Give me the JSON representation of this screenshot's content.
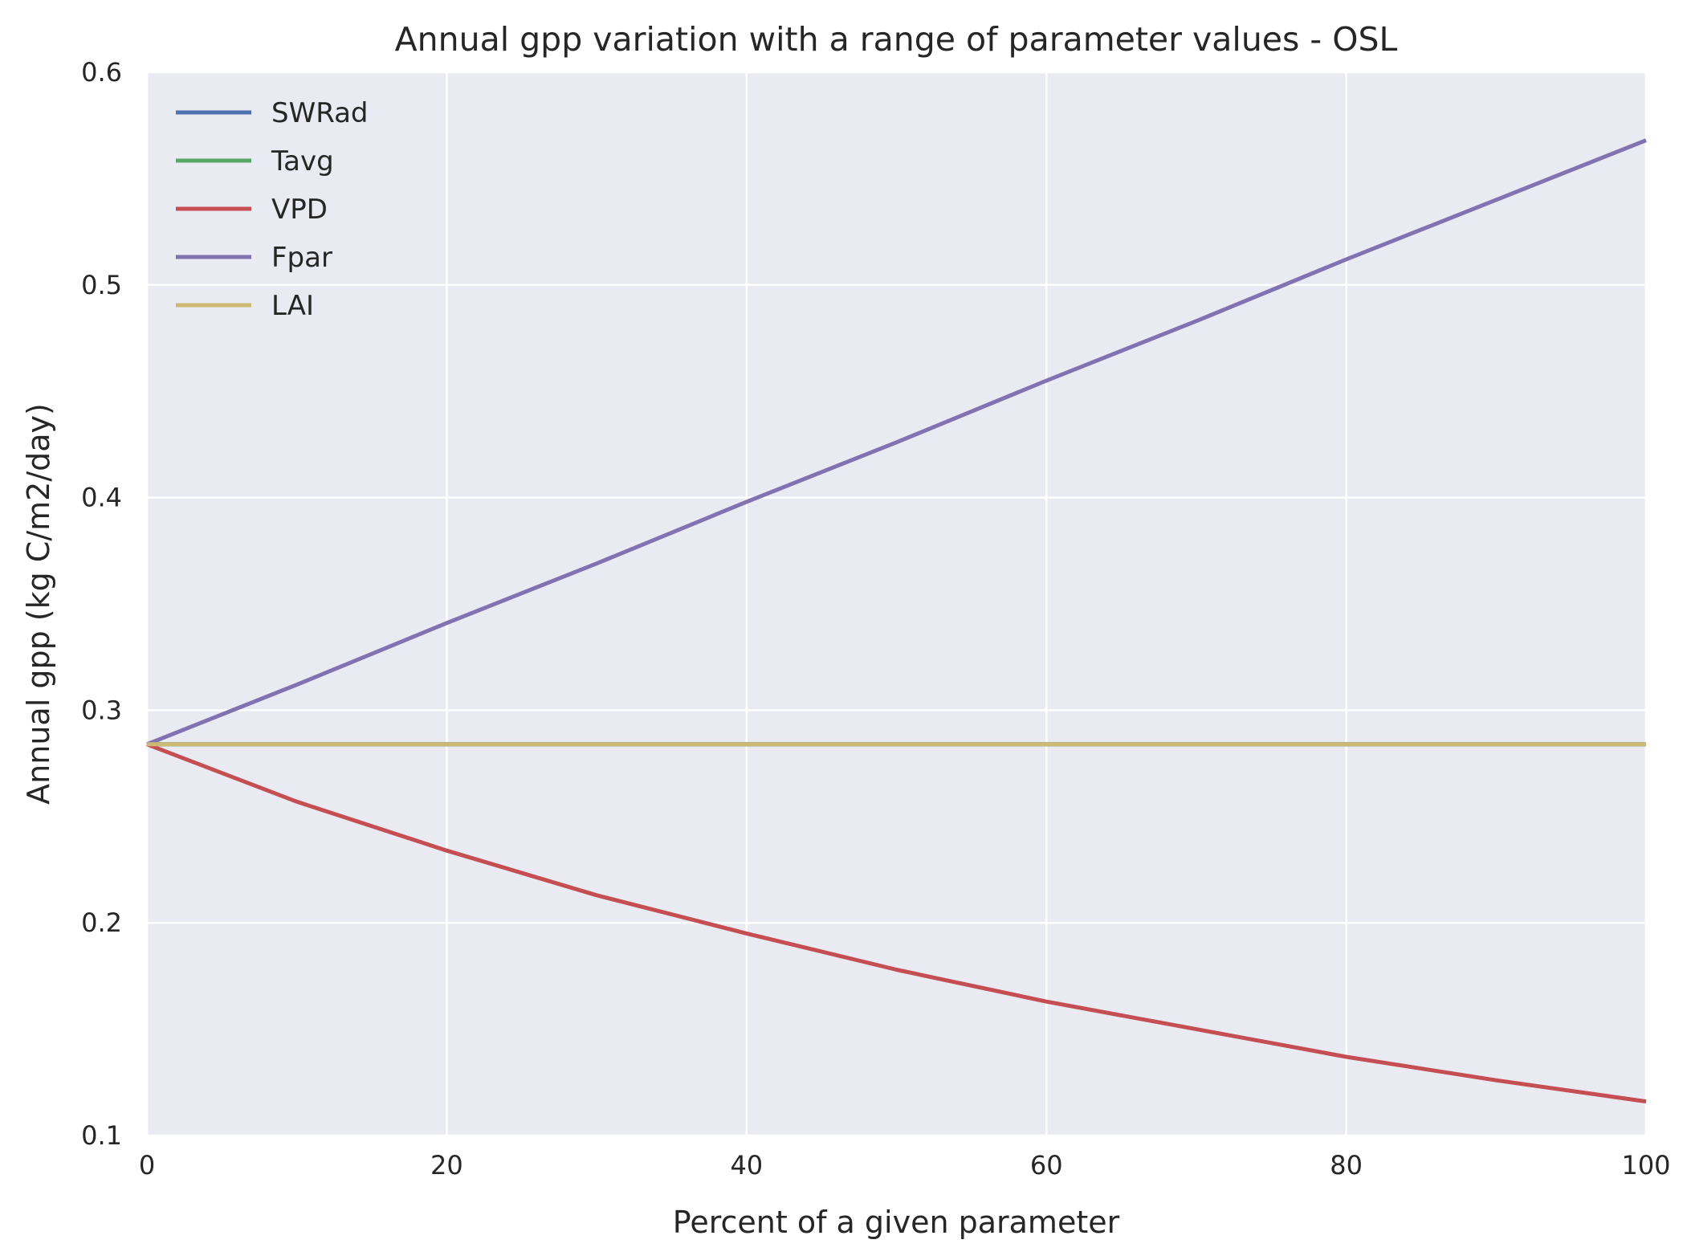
{
  "chart_data": {
    "type": "line",
    "title": "Annual gpp variation with a range of parameter values - OSL",
    "xlabel": "Percent of a given parameter",
    "ylabel": "Annual gpp (kg C/m2/day)",
    "xlim": [
      0,
      100
    ],
    "ylim": [
      0.1,
      0.6
    ],
    "xticks": [
      0,
      20,
      40,
      60,
      80,
      100
    ],
    "xtick_labels": [
      "0",
      "20",
      "40",
      "60",
      "80",
      "100"
    ],
    "yticks": [
      0.1,
      0.2,
      0.3,
      0.4,
      0.5,
      0.6
    ],
    "ytick_labels": [
      "0.1",
      "0.2",
      "0.3",
      "0.4",
      "0.5",
      "0.6"
    ],
    "grid": true,
    "legend_position": "top-left",
    "x": [
      0,
      10,
      20,
      30,
      40,
      50,
      60,
      70,
      80,
      90,
      100
    ],
    "series": [
      {
        "name": "SWRad",
        "color": "#4c72b0",
        "values": [
          0.284,
          0.284,
          0.284,
          0.284,
          0.284,
          0.284,
          0.284,
          0.284,
          0.284,
          0.284,
          0.284
        ]
      },
      {
        "name": "Tavg",
        "color": "#55a868",
        "values": [
          0.284,
          0.284,
          0.284,
          0.284,
          0.284,
          0.284,
          0.284,
          0.284,
          0.284,
          0.284,
          0.284
        ]
      },
      {
        "name": "VPD",
        "color": "#c44e52",
        "values": [
          0.284,
          0.257,
          0.234,
          0.213,
          0.195,
          0.178,
          0.163,
          0.15,
          0.137,
          0.126,
          0.116
        ]
      },
      {
        "name": "Fpar",
        "color": "#8172b2",
        "values": [
          0.284,
          0.312,
          0.341,
          0.369,
          0.398,
          0.426,
          0.455,
          0.483,
          0.512,
          0.54,
          0.568
        ]
      },
      {
        "name": "LAI",
        "color": "#ccb974",
        "values": [
          0.284,
          0.284,
          0.284,
          0.284,
          0.284,
          0.284,
          0.284,
          0.284,
          0.284,
          0.284,
          0.284
        ]
      }
    ]
  }
}
